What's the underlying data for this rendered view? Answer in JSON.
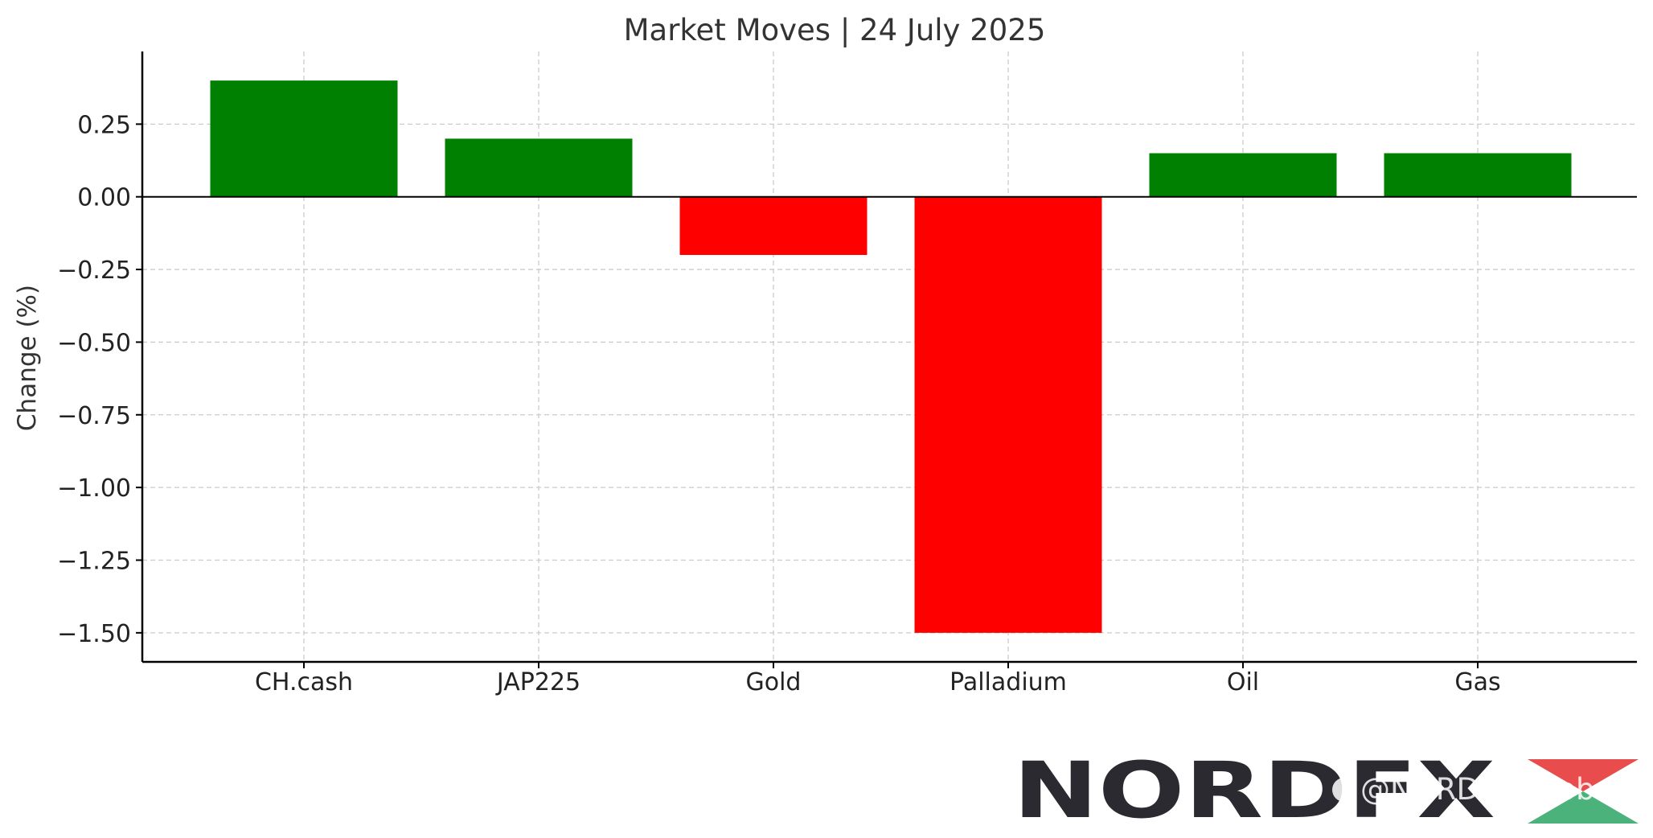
{
  "chart_data": {
    "type": "bar",
    "title": "Market Moves | 24 July 2025",
    "xlabel": "",
    "ylabel": "Change (%)",
    "categories": [
      "CH.cash",
      "JAP225",
      "Gold",
      "Palladium",
      "Oil",
      "Gas"
    ],
    "values": [
      0.4,
      0.2,
      -0.2,
      -1.5,
      0.15,
      0.15
    ],
    "ylim": [
      -1.6,
      0.5
    ],
    "yticks": [
      0.25,
      0.0,
      -0.25,
      -0.5,
      -0.75,
      -1.0,
      -1.25,
      -1.5
    ],
    "ytick_labels": [
      "0.25",
      "0.00",
      "−0.25",
      "−0.50",
      "−0.75",
      "−1.00",
      "−1.25",
      "−1.50"
    ],
    "grid": true,
    "colors": {
      "positive": "#008000",
      "negative": "#ff0000"
    }
  },
  "branding": {
    "logo_text": "NORDFX",
    "watermark": "@NORDFX Global"
  }
}
